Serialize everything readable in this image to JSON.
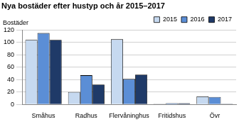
{
  "chart_data": {
    "type": "bar",
    "title": "Nya bostäder efter hustyp och år 2015–2017",
    "ylabel": "Bostäder",
    "categories": [
      "Småhus",
      "Radhus",
      "Flervåninghus",
      "Fritidshus",
      "Övr"
    ],
    "series": [
      {
        "name": "2015",
        "color": "#c6d9f0",
        "values": [
          104,
          20,
          105,
          1,
          13
        ]
      },
      {
        "name": "2016",
        "color": "#5b8ed6",
        "values": [
          115,
          47,
          41,
          2,
          12
        ]
      },
      {
        "name": "2017",
        "color": "#1f3a68",
        "values": [
          104,
          32,
          48,
          2,
          1
        ]
      }
    ],
    "ylim": [
      0,
      120
    ],
    "yticks": [
      0,
      20,
      40,
      60,
      80,
      100,
      120
    ],
    "grid": true,
    "legend": "top right"
  }
}
